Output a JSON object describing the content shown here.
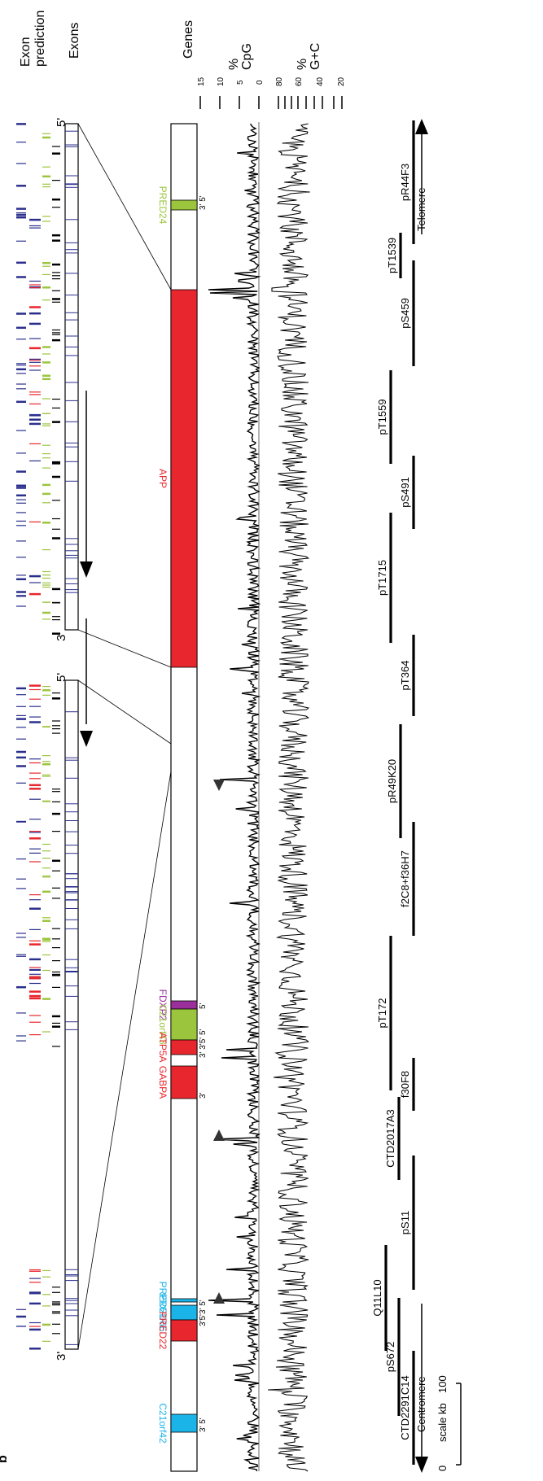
{
  "panel_label": "b",
  "track_headers": {
    "exon_prediction": [
      "Exon",
      "prediction"
    ],
    "exons": "Exons",
    "genes": "Genes",
    "cpg": [
      "%",
      "CpG"
    ],
    "gc": [
      "%",
      "G+C"
    ]
  },
  "cpg_ticks": [
    "15",
    "10",
    "5",
    "0"
  ],
  "gc_ticks": [
    "80",
    "60",
    "40",
    "20"
  ],
  "genes": [
    {
      "name": "C21orf42",
      "color": "#1bb4e8",
      "ends": "3' 5'"
    },
    {
      "name": "PRED21",
      "color": "#1bb4e8",
      "ends": ""
    },
    {
      "name": "PRED66",
      "color": "#1bb4e8",
      "ends": "3'5'3' 5'"
    },
    {
      "name": "PRED22",
      "color": "#e8262d",
      "ends": ""
    },
    {
      "name": "FDXP2",
      "color": "#9b2f9b",
      "ends": "5'"
    },
    {
      "name": "C21orf43",
      "color": "#9bc53d",
      "ends": ""
    },
    {
      "name": "ATP5A",
      "color": "#e8262d",
      "ends": "3' 3'5' 5'"
    },
    {
      "name": "GABPA",
      "color": "#e8262d",
      "ends": "3'"
    },
    {
      "name": "APP",
      "color": "#e8262d",
      "ends": ""
    },
    {
      "name": "PRED24",
      "color": "#9bc53d",
      "ends": "3' 5'"
    }
  ],
  "clones": [
    "CTD2291C14",
    "pS672",
    "Q11L10",
    "pS11",
    "CTD2017A3",
    "f30F8",
    "pT172",
    "f2C8+f36H7",
    "pR49K20",
    "pT364",
    "pT1715",
    "pS491",
    "pT1559",
    "pS459",
    "pT1539",
    "pR44F3"
  ],
  "labels": {
    "centromere": "Centromere",
    "telomere": "Telomere",
    "scale": "scale kb",
    "scale_0": "0",
    "scale_100": "100",
    "strand_3": "3'",
    "strand_5": "5'"
  },
  "colors": {
    "red": "#e8262d",
    "blue": "#1bb4e8",
    "green": "#9bc53d",
    "purple": "#9b2f9b",
    "navy": "#2b2f8c"
  }
}
